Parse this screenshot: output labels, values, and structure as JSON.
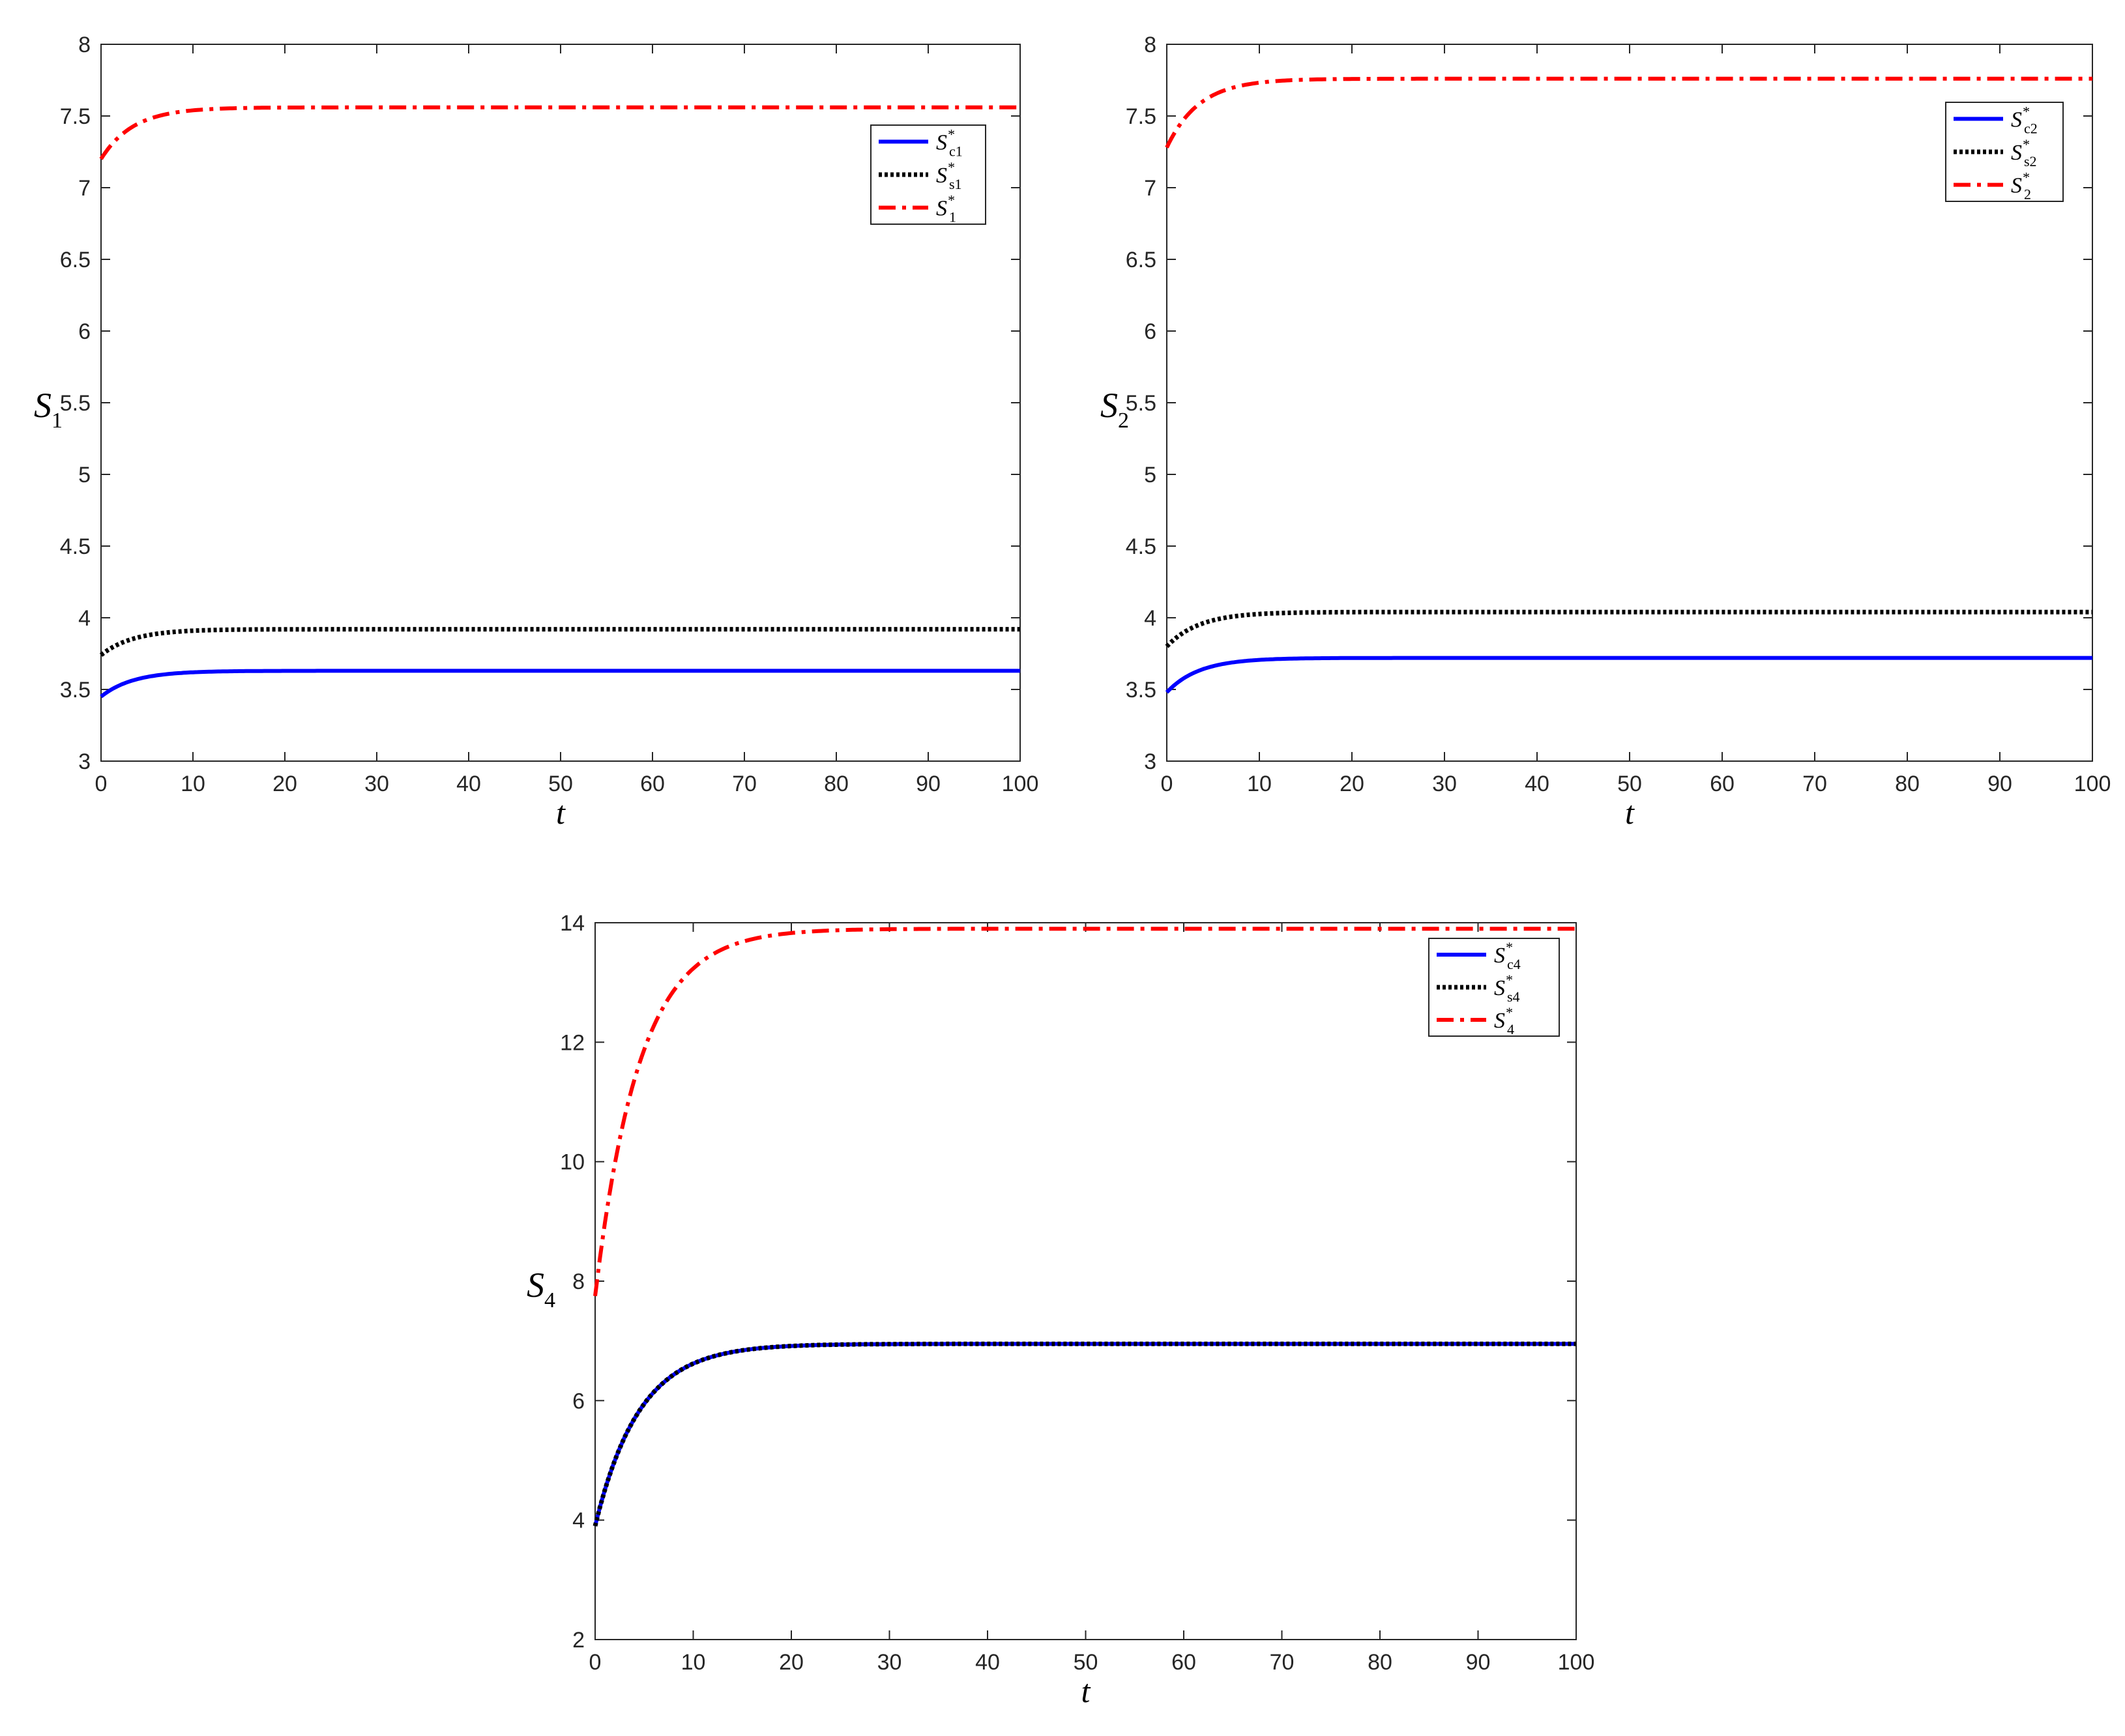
{
  "chart_data": [
    {
      "type": "line",
      "xlabel": "t",
      "ylabel": "S",
      "ylabel_sub": "1",
      "xlim": [
        0,
        100
      ],
      "ylim": [
        3,
        8
      ],
      "xticks": [
        "0",
        "10",
        "20",
        "30",
        "40",
        "50",
        "60",
        "70",
        "80",
        "90",
        "100"
      ],
      "yticks": [
        "3",
        "3.5",
        "4",
        "4.5",
        "5",
        "5.5",
        "6",
        "6.5",
        "7",
        "7.5",
        "8"
      ],
      "grid": false,
      "legend_position": "top-right",
      "series": [
        {
          "name": "S",
          "name_sup": "*",
          "name_sub": "c1",
          "style": "solid",
          "color": "#0000ff",
          "start": 3.45,
          "end": 3.63,
          "tau": 3.5
        },
        {
          "name": "S",
          "name_sup": "*",
          "name_sub": "s1",
          "style": "dotted",
          "color": "#000000",
          "start": 3.74,
          "end": 3.92,
          "tau": 3.5
        },
        {
          "name": "S",
          "name_sup": "*",
          "name_sub": "1",
          "style": "dashdot",
          "color": "#ff0000",
          "start": 7.2,
          "end": 7.56,
          "tau": 3.5
        }
      ]
    },
    {
      "type": "line",
      "xlabel": "t",
      "ylabel": "S",
      "ylabel_sub": "2",
      "xlim": [
        0,
        100
      ],
      "ylim": [
        3,
        8
      ],
      "xticks": [
        "0",
        "10",
        "20",
        "30",
        "40",
        "50",
        "60",
        "70",
        "80",
        "90",
        "100"
      ],
      "yticks": [
        "3",
        "3.5",
        "4",
        "4.5",
        "5",
        "5.5",
        "6",
        "6.5",
        "7",
        "7.5",
        "8"
      ],
      "grid": false,
      "legend_position": "top-right",
      "series": [
        {
          "name": "S",
          "name_sup": "*",
          "name_sub": "c2",
          "style": "solid",
          "color": "#0000ff",
          "start": 3.48,
          "end": 3.72,
          "tau": 3.5
        },
        {
          "name": "S",
          "name_sup": "*",
          "name_sub": "s2",
          "style": "dotted",
          "color": "#000000",
          "start": 3.8,
          "end": 4.04,
          "tau": 3.5
        },
        {
          "name": "S",
          "name_sup": "*",
          "name_sub": "2",
          "style": "dashdot",
          "color": "#ff0000",
          "start": 7.28,
          "end": 7.76,
          "tau": 3.5
        }
      ]
    },
    {
      "type": "line",
      "xlabel": "t",
      "ylabel": "S",
      "ylabel_sub": "4",
      "xlim": [
        0,
        100
      ],
      "ylim": [
        2,
        14
      ],
      "xticks": [
        "0",
        "10",
        "20",
        "30",
        "40",
        "50",
        "60",
        "70",
        "80",
        "90",
        "100"
      ],
      "yticks": [
        "2",
        "4",
        "6",
        "8",
        "10",
        "12",
        "14"
      ],
      "grid": false,
      "legend_position": "top-right",
      "series": [
        {
          "name": "S",
          "name_sup": "*",
          "name_sub": "c4",
          "style": "solid",
          "color": "#0000ff",
          "start": 3.9,
          "end": 6.95,
          "tau": 4.5
        },
        {
          "name": "S",
          "name_sup": "*",
          "name_sub": "s4",
          "style": "dotted",
          "color": "#000000",
          "start": 3.9,
          "end": 6.95,
          "tau": 4.5
        },
        {
          "name": "S",
          "name_sup": "*",
          "name_sub": "4",
          "style": "dashdot",
          "color": "#ff0000",
          "start": 7.75,
          "end": 13.9,
          "tau": 4.5
        }
      ]
    }
  ]
}
